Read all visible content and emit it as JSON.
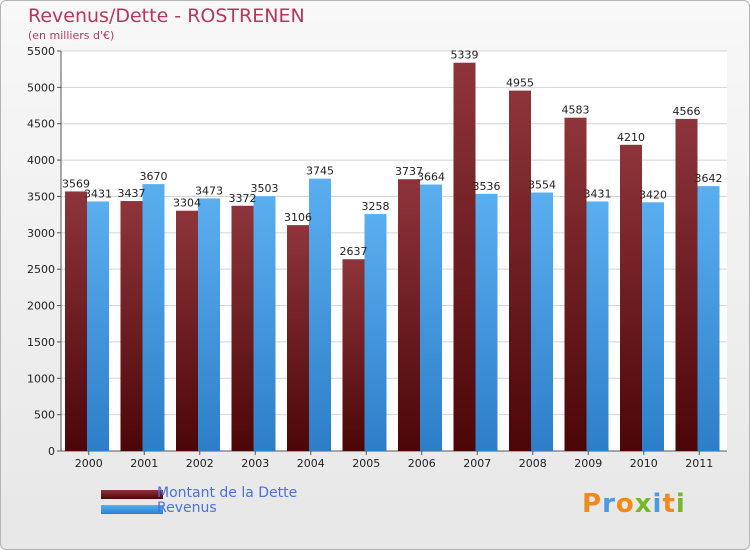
{
  "chart_data": {
    "type": "bar",
    "title": "Revenus/Dette - ROSTRENEN",
    "subtitle": "(en milliers d'€)",
    "categories": [
      "2000",
      "2001",
      "2002",
      "2003",
      "2004",
      "2005",
      "2006",
      "2007",
      "2008",
      "2009",
      "2010",
      "2011"
    ],
    "series": [
      {
        "name": "Montant de la Dette",
        "color": "#7e2a30",
        "values": [
          3569,
          3437,
          3304,
          3372,
          3106,
          2637,
          3737,
          5339,
          4955,
          4583,
          4210,
          4566
        ]
      },
      {
        "name": "Revenus",
        "color": "#4fa3e6",
        "values": [
          3431,
          3670,
          3473,
          3503,
          3745,
          3258,
          3664,
          3536,
          3554,
          3431,
          3420,
          3642
        ]
      }
    ],
    "ylim": [
      0,
      5500
    ],
    "yticks": [
      0,
      500,
      1000,
      1500,
      2000,
      2500,
      3000,
      3500,
      4000,
      4500,
      5000,
      5500
    ],
    "grid": true,
    "legend_position": "bottom-left"
  },
  "branding": {
    "logo_text": "Proxiti",
    "logo_colors": [
      "#f08a1c",
      "#4a9be0",
      "#f08a1c",
      "#77b82b",
      "#4a9be0",
      "#f08a1c",
      "#77b82b"
    ]
  }
}
